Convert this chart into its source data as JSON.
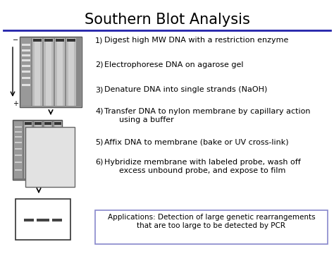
{
  "title": "Southern Blot Analysis",
  "title_fontsize": 15,
  "title_fontweight": "normal",
  "steps_numbered": [
    [
      "1)",
      "Digest high MW DNA with a restriction enzyme"
    ],
    [
      "2)",
      "Electrophorese DNA on agarose gel"
    ],
    [
      "3)",
      "Denature DNA into single strands (NaOH)"
    ],
    [
      "4)",
      "Transfer DNA to nylon membrane by capillary action\n      using a buffer"
    ],
    [
      "5)",
      "Affix DNA to membrane (bake or UV cross-link)"
    ],
    [
      "6)",
      "Hybridize membrane with labeled probe, wash off\n      excess unbound probe, and expose to film"
    ]
  ],
  "app_text": "Applications: Detection of large genetic rearrangements\nthat are too large to be detected by PCR",
  "header_line_color": "#2222aa",
  "app_box_edge_color": "#8888cc",
  "step_fontsize": 8,
  "app_fontsize": 7.5,
  "num_fontsize": 8
}
